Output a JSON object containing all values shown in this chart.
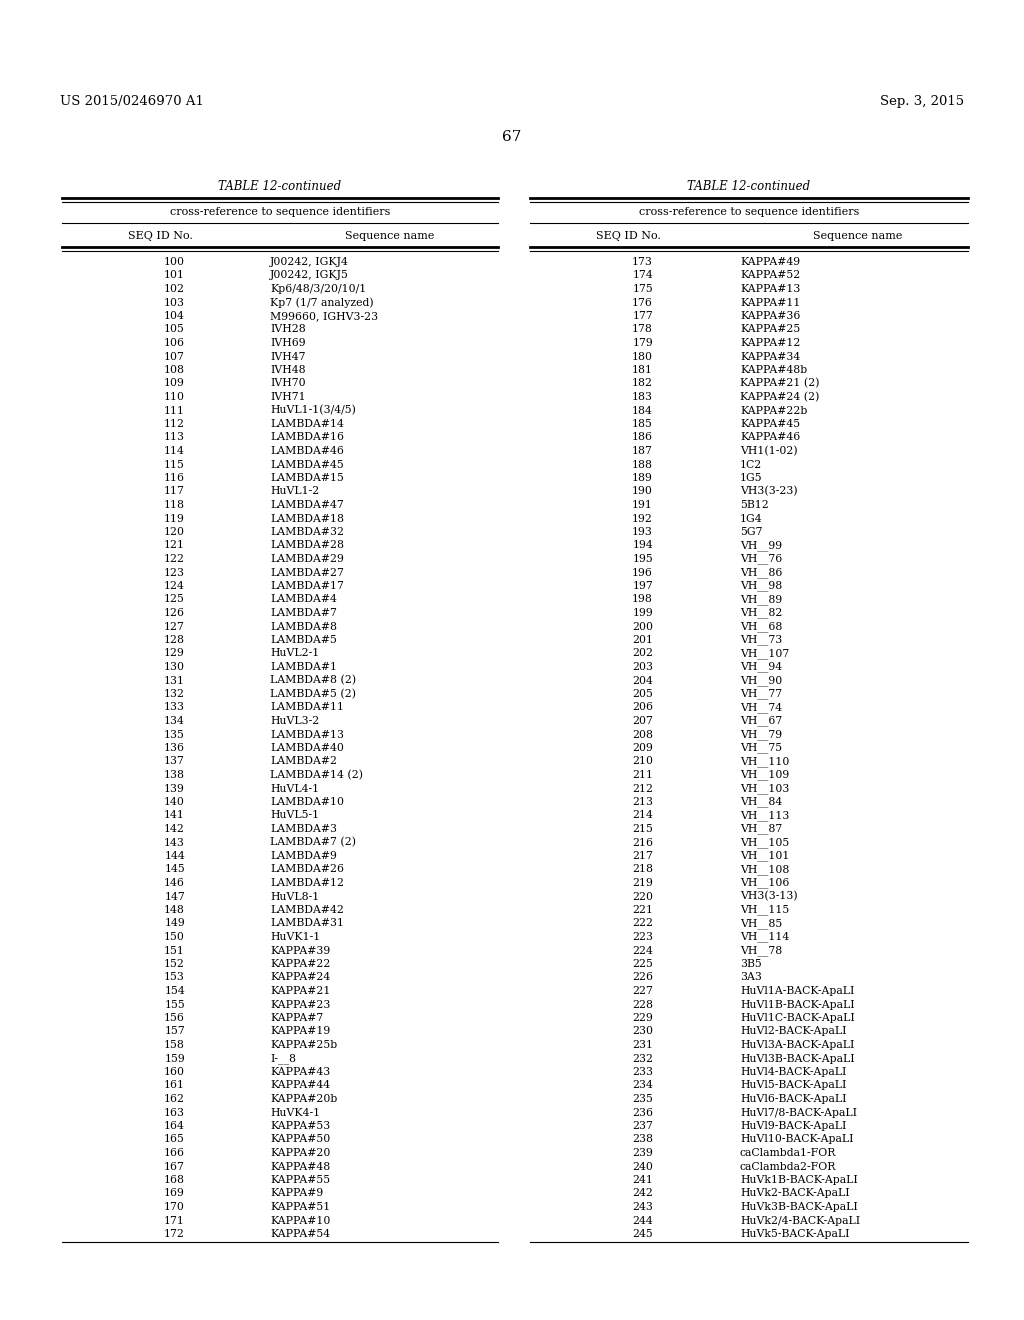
{
  "header_left": "US 2015/0246970 A1",
  "header_right": "Sep. 3, 2015",
  "page_number": "67",
  "table_title": "TABLE 12-continued",
  "table_subtitle": "cross-reference to sequence identifiers",
  "col1_header": "SEQ ID No.",
  "col2_header": "Sequence name",
  "col3_header": "SEQ ID No.",
  "col4_header": "Sequence name",
  "left_data": [
    [
      "100",
      "J00242, IGKJ4"
    ],
    [
      "101",
      "J00242, IGKJ5"
    ],
    [
      "102",
      "Kp6/48/3/20/10/1"
    ],
    [
      "103",
      "Kp7 (1/7 analyzed)"
    ],
    [
      "104",
      "M99660, IGHV3-23"
    ],
    [
      "105",
      "IVH28"
    ],
    [
      "106",
      "IVH69"
    ],
    [
      "107",
      "IVH47"
    ],
    [
      "108",
      "IVH48"
    ],
    [
      "109",
      "IVH70"
    ],
    [
      "110",
      "IVH71"
    ],
    [
      "111",
      "HuVL1-1(3/4/5)"
    ],
    [
      "112",
      "LAMBDA#14"
    ],
    [
      "113",
      "LAMBDA#16"
    ],
    [
      "114",
      "LAMBDA#46"
    ],
    [
      "115",
      "LAMBDA#45"
    ],
    [
      "116",
      "LAMBDA#15"
    ],
    [
      "117",
      "HuVL1-2"
    ],
    [
      "118",
      "LAMBDA#47"
    ],
    [
      "119",
      "LAMBDA#18"
    ],
    [
      "120",
      "LAMBDA#32"
    ],
    [
      "121",
      "LAMBDA#28"
    ],
    [
      "122",
      "LAMBDA#29"
    ],
    [
      "123",
      "LAMBDA#27"
    ],
    [
      "124",
      "LAMBDA#17"
    ],
    [
      "125",
      "LAMBDA#4"
    ],
    [
      "126",
      "LAMBDA#7"
    ],
    [
      "127",
      "LAMBDA#8"
    ],
    [
      "128",
      "LAMBDA#5"
    ],
    [
      "129",
      "HuVL2-1"
    ],
    [
      "130",
      "LAMBDA#1"
    ],
    [
      "131",
      "LAMBDA#8 (2)"
    ],
    [
      "132",
      "LAMBDA#5 (2)"
    ],
    [
      "133",
      "LAMBDA#11"
    ],
    [
      "134",
      "HuVL3-2"
    ],
    [
      "135",
      "LAMBDA#13"
    ],
    [
      "136",
      "LAMBDA#40"
    ],
    [
      "137",
      "LAMBDA#2"
    ],
    [
      "138",
      "LAMBDA#14 (2)"
    ],
    [
      "139",
      "HuVL4-1"
    ],
    [
      "140",
      "LAMBDA#10"
    ],
    [
      "141",
      "HuVL5-1"
    ],
    [
      "142",
      "LAMBDA#3"
    ],
    [
      "143",
      "LAMBDA#7 (2)"
    ],
    [
      "144",
      "LAMBDA#9"
    ],
    [
      "145",
      "LAMBDA#26"
    ],
    [
      "146",
      "LAMBDA#12"
    ],
    [
      "147",
      "HuVL8-1"
    ],
    [
      "148",
      "LAMBDA#42"
    ],
    [
      "149",
      "LAMBDA#31"
    ],
    [
      "150",
      "HuVK1-1"
    ],
    [
      "151",
      "KAPPA#39"
    ],
    [
      "152",
      "KAPPA#22"
    ],
    [
      "153",
      "KAPPA#24"
    ],
    [
      "154",
      "KAPPA#21"
    ],
    [
      "155",
      "KAPPA#23"
    ],
    [
      "156",
      "KAPPA#7"
    ],
    [
      "157",
      "KAPPA#19"
    ],
    [
      "158",
      "KAPPA#25b"
    ],
    [
      "159",
      "I-__8"
    ],
    [
      "160",
      "KAPPA#43"
    ],
    [
      "161",
      "KAPPA#44"
    ],
    [
      "162",
      "KAPPA#20b"
    ],
    [
      "163",
      "HuVK4-1"
    ],
    [
      "164",
      "KAPPA#53"
    ],
    [
      "165",
      "KAPPA#50"
    ],
    [
      "166",
      "KAPPA#20"
    ],
    [
      "167",
      "KAPPA#48"
    ],
    [
      "168",
      "KAPPA#55"
    ],
    [
      "169",
      "KAPPA#9"
    ],
    [
      "170",
      "KAPPA#51"
    ],
    [
      "171",
      "KAPPA#10"
    ],
    [
      "172",
      "KAPPA#54"
    ]
  ],
  "right_data": [
    [
      "173",
      "KAPPA#49"
    ],
    [
      "174",
      "KAPPA#52"
    ],
    [
      "175",
      "KAPPA#13"
    ],
    [
      "176",
      "KAPPA#11"
    ],
    [
      "177",
      "KAPPA#36"
    ],
    [
      "178",
      "KAPPA#25"
    ],
    [
      "179",
      "KAPPA#12"
    ],
    [
      "180",
      "KAPPA#34"
    ],
    [
      "181",
      "KAPPA#48b"
    ],
    [
      "182",
      "KAPPA#21 (2)"
    ],
    [
      "183",
      "KAPPA#24 (2)"
    ],
    [
      "184",
      "KAPPA#22b"
    ],
    [
      "185",
      "KAPPA#45"
    ],
    [
      "186",
      "KAPPA#46"
    ],
    [
      "187",
      "VH1(1-02)"
    ],
    [
      "188",
      "1C2"
    ],
    [
      "189",
      "1G5"
    ],
    [
      "190",
      "VH3(3-23)"
    ],
    [
      "191",
      "5B12"
    ],
    [
      "192",
      "1G4"
    ],
    [
      "193",
      "5G7"
    ],
    [
      "194",
      "VH__99"
    ],
    [
      "195",
      "VH__76"
    ],
    [
      "196",
      "VH__86"
    ],
    [
      "197",
      "VH__98"
    ],
    [
      "198",
      "VH__89"
    ],
    [
      "199",
      "VH__82"
    ],
    [
      "200",
      "VH__68"
    ],
    [
      "201",
      "VH__73"
    ],
    [
      "202",
      "VH__107"
    ],
    [
      "203",
      "VH__94"
    ],
    [
      "204",
      "VH__90"
    ],
    [
      "205",
      "VH__77"
    ],
    [
      "206",
      "VH__74"
    ],
    [
      "207",
      "VH__67"
    ],
    [
      "208",
      "VH__79"
    ],
    [
      "209",
      "VH__75"
    ],
    [
      "210",
      "VH__110"
    ],
    [
      "211",
      "VH__109"
    ],
    [
      "212",
      "VH__103"
    ],
    [
      "213",
      "VH__84"
    ],
    [
      "214",
      "VH__113"
    ],
    [
      "215",
      "VH__87"
    ],
    [
      "216",
      "VH__105"
    ],
    [
      "217",
      "VH__101"
    ],
    [
      "218",
      "VH__108"
    ],
    [
      "219",
      "VH__106"
    ],
    [
      "220",
      "VH3(3-13)"
    ],
    [
      "221",
      "VH__115"
    ],
    [
      "222",
      "VH__85"
    ],
    [
      "223",
      "VH__114"
    ],
    [
      "224",
      "VH__78"
    ],
    [
      "225",
      "3B5"
    ],
    [
      "226",
      "3A3"
    ],
    [
      "227",
      "HuVl1A-BACK-ApaLI"
    ],
    [
      "228",
      "HuVl1B-BACK-ApaLI"
    ],
    [
      "229",
      "HuVl1C-BACK-ApaLI"
    ],
    [
      "230",
      "HuVl2-BACK-ApaLI"
    ],
    [
      "231",
      "HuVl3A-BACK-ApaLI"
    ],
    [
      "232",
      "HuVl3B-BACK-ApaLI"
    ],
    [
      "233",
      "HuVl4-BACK-ApaLI"
    ],
    [
      "234",
      "HuVl5-BACK-ApaLI"
    ],
    [
      "235",
      "HuVl6-BACK-ApaLI"
    ],
    [
      "236",
      "HuVl7/8-BACK-ApaLI"
    ],
    [
      "237",
      "HuVl9-BACK-ApaLI"
    ],
    [
      "238",
      "HuVl10-BACK-ApaLI"
    ],
    [
      "239",
      "caClambda1-FOR"
    ],
    [
      "240",
      "caClambda2-FOR"
    ],
    [
      "241",
      "HuVk1B-BACK-ApaLI"
    ],
    [
      "242",
      "HuVk2-BACK-ApaLI"
    ],
    [
      "243",
      "HuVk3B-BACK-ApaLI"
    ],
    [
      "244",
      "HuVk2/4-BACK-ApaLI"
    ],
    [
      "245",
      "HuVk5-BACK-ApaLI"
    ]
  ]
}
